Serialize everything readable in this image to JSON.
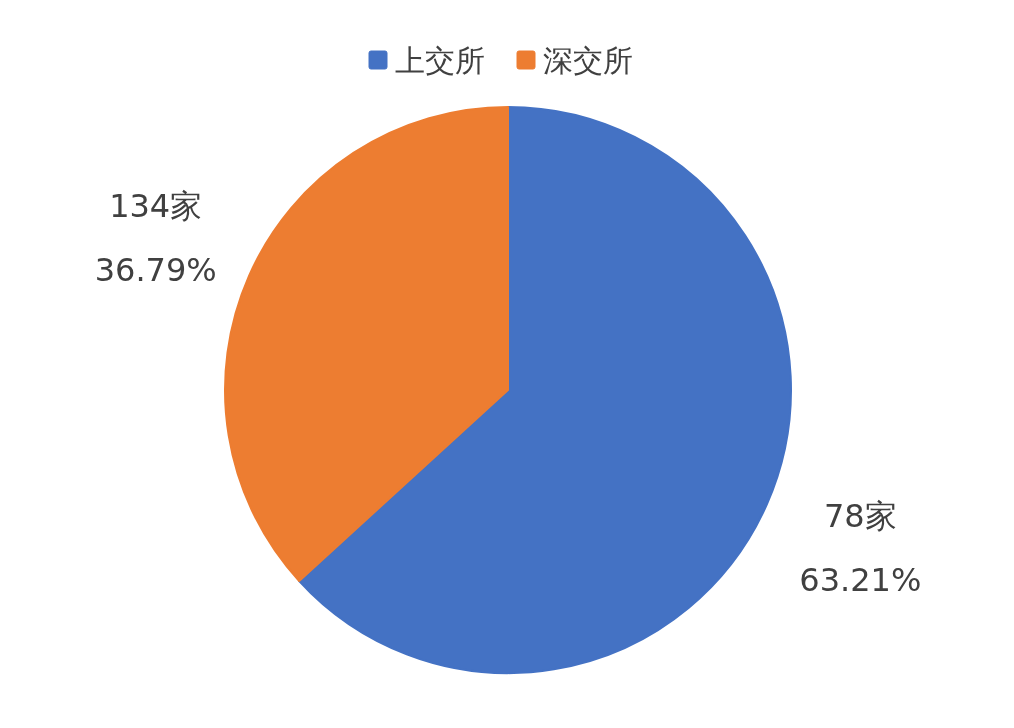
{
  "chart_data": {
    "type": "pie",
    "categories": [
      "上交所",
      "深交所"
    ],
    "values": [
      63.21,
      36.79
    ],
    "colors": [
      "#4472c4",
      "#ed7d31"
    ],
    "value_labels": [
      "78家\n63.21%",
      "134家\n36.79%"
    ],
    "legend": "top"
  }
}
